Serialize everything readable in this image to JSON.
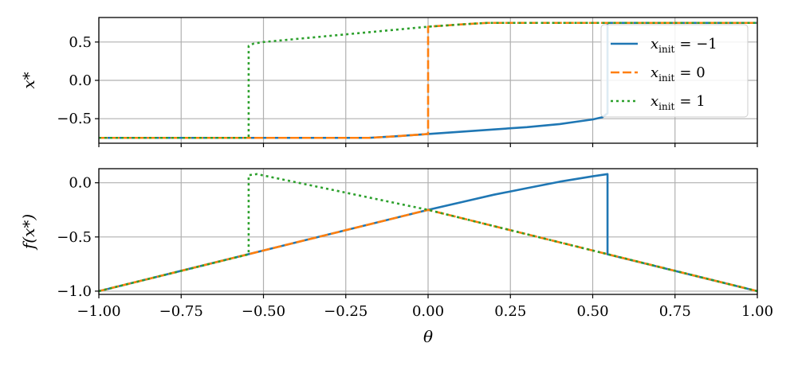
{
  "chart_data": [
    {
      "type": "line",
      "ylabel": "x*",
      "xlim": [
        -1.0,
        1.0
      ],
      "ylim": [
        -0.82,
        0.82
      ],
      "yticks": [
        -0.5,
        0.0,
        0.5
      ],
      "ytick_labels": [
        "−0.5",
        "0.0",
        "0.5"
      ],
      "xticks": [
        -1.0,
        -0.75,
        -0.5,
        -0.25,
        0.0,
        0.25,
        0.5,
        0.75,
        1.0
      ],
      "grid": true,
      "legend_position": "top-right",
      "legend": [
        {
          "base": "x",
          "sub": "init",
          "eq": "= −1",
          "color": "#1f77b4",
          "dash": "solid"
        },
        {
          "base": "x",
          "sub": "init",
          "eq": "= 0",
          "color": "#ff7f0e",
          "dash": "dashed"
        },
        {
          "base": "x",
          "sub": "init",
          "eq": "= 1",
          "color": "#2ca02c",
          "dash": "dotted"
        }
      ],
      "series": [
        {
          "color": "#1f77b4",
          "dash": "solid",
          "x": [
            -1.0,
            -0.18,
            -0.1,
            0.0,
            0.1,
            0.2,
            0.3,
            0.4,
            0.45,
            0.5,
            0.53,
            0.545,
            0.545,
            0.6,
            1.0
          ],
          "y": [
            -0.75,
            -0.75,
            -0.73,
            -0.7,
            -0.67,
            -0.64,
            -0.61,
            -0.57,
            -0.54,
            -0.51,
            -0.48,
            -0.43,
            0.75,
            0.75,
            0.75
          ]
        },
        {
          "color": "#ff7f0e",
          "dash": "dashed",
          "x": [
            -1.0,
            -0.18,
            -0.1,
            0.0,
            0.0,
            0.1,
            0.18,
            0.3,
            1.0
          ],
          "y": [
            -0.75,
            -0.75,
            -0.73,
            -0.7,
            0.7,
            0.73,
            0.75,
            0.75,
            0.75
          ]
        },
        {
          "color": "#2ca02c",
          "dash": "dotted",
          "x": [
            -1.0,
            -0.545,
            -0.545,
            -0.53,
            -0.5,
            -0.4,
            -0.3,
            -0.2,
            -0.1,
            0.0,
            0.1,
            0.18,
            0.3,
            1.0
          ],
          "y": [
            -0.75,
            -0.75,
            0.45,
            0.48,
            0.5,
            0.54,
            0.58,
            0.62,
            0.66,
            0.7,
            0.73,
            0.75,
            0.75,
            0.75
          ]
        }
      ]
    },
    {
      "type": "line",
      "xlabel": "θ",
      "ylabel": "f(x*)",
      "xlim": [
        -1.0,
        1.0
      ],
      "ylim": [
        -1.03,
        0.13
      ],
      "yticks": [
        -1.0,
        -0.5,
        0.0
      ],
      "ytick_labels": [
        "−1.0",
        "−0.5",
        "0.0"
      ],
      "xticks": [
        -1.0,
        -0.75,
        -0.5,
        -0.25,
        0.0,
        0.25,
        0.5,
        0.75,
        1.0
      ],
      "xtick_labels": [
        "−1.00",
        "−0.75",
        "−0.50",
        "−0.25",
        "0.00",
        "0.25",
        "0.50",
        "0.75",
        "1.00"
      ],
      "grid": true,
      "series": [
        {
          "color": "#1f77b4",
          "dash": "solid",
          "x": [
            -1.0,
            0.0,
            0.1,
            0.2,
            0.3,
            0.4,
            0.5,
            0.545,
            0.545,
            1.0
          ],
          "y": [
            -1.0,
            -0.25,
            -0.18,
            -0.11,
            -0.05,
            0.01,
            0.06,
            0.08,
            -0.66,
            -1.0
          ]
        },
        {
          "color": "#ff7f0e",
          "dash": "dashed",
          "x": [
            -1.0,
            0.0,
            1.0
          ],
          "y": [
            -1.0,
            -0.25,
            -1.0
          ]
        },
        {
          "color": "#2ca02c",
          "dash": "dotted",
          "x": [
            -1.0,
            -0.545,
            -0.545,
            -0.52,
            0.0,
            1.0
          ],
          "y": [
            -1.0,
            -0.66,
            0.07,
            0.08,
            -0.25,
            -1.0
          ]
        }
      ]
    }
  ]
}
